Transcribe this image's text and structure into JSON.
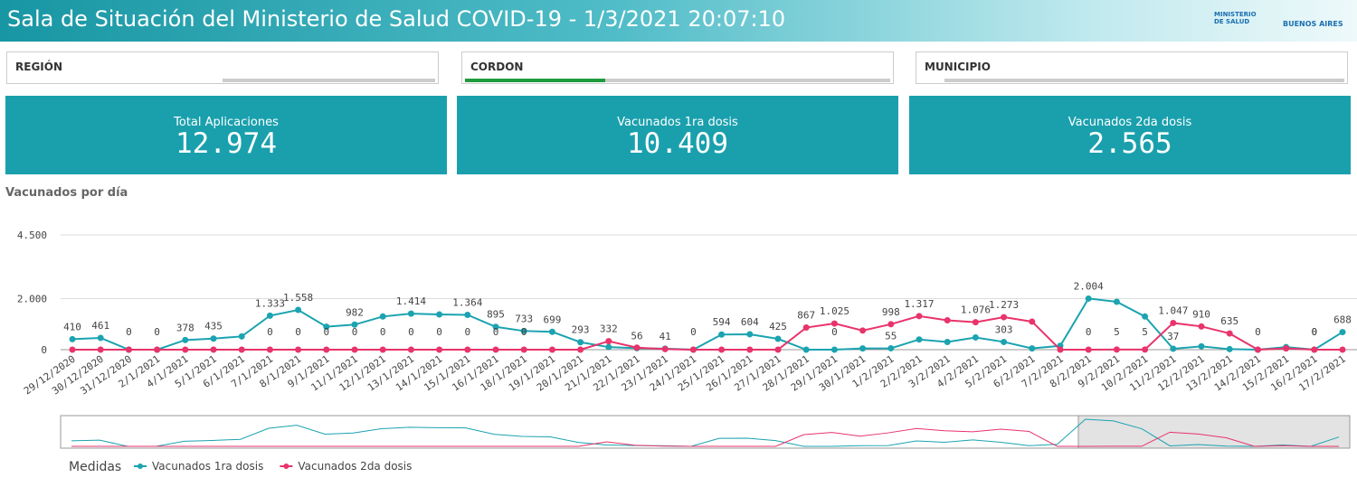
{
  "header": {
    "title": "Sala de Situación del Ministerio de Salud COVID-19 - 1/3/2021 20:07:10",
    "logo_left": "MINISTERIO DE SALUD",
    "logo_right": "BUENOS AIRES"
  },
  "filters": [
    "REGIÓN",
    "CORDON",
    "MUNICIPIO"
  ],
  "kpis": [
    {
      "title": "Total Aplicaciones",
      "value": "12.974"
    },
    {
      "title": "Vacunados 1ra dosis",
      "value": "10.409"
    },
    {
      "title": "Vacunados 2da dosis",
      "value": "2.565"
    }
  ],
  "chart_data": {
    "type": "line",
    "title": "Vacunados por día",
    "legend_title": "Medidas",
    "categories": [
      "29/12/2020",
      "30/12/2020",
      "31/12/2020",
      "2/1/2021",
      "4/1/2021",
      "5/1/2021",
      "6/1/2021",
      "7/1/2021",
      "8/1/2021",
      "9/1/2021",
      "11/1/2021",
      "12/1/2021",
      "13/1/2021",
      "14/1/2021",
      "15/1/2021",
      "16/1/2021",
      "18/1/2021",
      "19/1/2021",
      "20/1/2021",
      "21/1/2021",
      "22/1/2021",
      "23/1/2021",
      "24/1/2021",
      "25/1/2021",
      "26/1/2021",
      "27/1/2021",
      "28/1/2021",
      "29/1/2021",
      "30/1/2021",
      "1/2/2021",
      "2/2/2021",
      "3/2/2021",
      "4/2/2021",
      "5/2/2021",
      "6/2/2021",
      "7/2/2021",
      "8/2/2021",
      "9/2/2021",
      "10/2/2021",
      "11/2/2021",
      "12/2/2021",
      "13/2/2021",
      "14/2/2021",
      "15/2/2021",
      "16/2/2021",
      "17/2/2021"
    ],
    "ylim": [
      0,
      4500
    ],
    "yticks": [
      0,
      {
        "value": 2000,
        "label": "2.000"
      },
      {
        "value": 4500,
        "label": "4.500"
      }
    ],
    "grid": true,
    "series": [
      {
        "name": "Vacunados 1ra dosis",
        "color": "#1ba3b0",
        "values": [
          410,
          461,
          0,
          0,
          378,
          435,
          520,
          1333,
          1558,
          900,
          982,
          1300,
          1414,
          1380,
          1364,
          895,
          733,
          699,
          293,
          100,
          56,
          41,
          0,
          594,
          604,
          425,
          0,
          0,
          50,
          55,
          400,
          300,
          480,
          303,
          50,
          150,
          2004,
          1878,
          1300,
          37,
          130,
          20,
          0,
          100,
          0,
          688
        ],
        "value_labels": [
          "410",
          "461",
          "0",
          "0",
          "378",
          "435",
          null,
          "1.333",
          "1.558",
          null,
          "982",
          null,
          "1.414",
          null,
          "1.364",
          "895",
          "733",
          "699",
          "293",
          null,
          "56",
          "41",
          "0",
          "594",
          "604",
          "425",
          null,
          "0",
          null,
          "55",
          null,
          null,
          null,
          "303",
          null,
          null,
          "2.004",
          null,
          null,
          "37",
          null,
          null,
          null,
          null,
          "0",
          "688"
        ]
      },
      {
        "name": "Vacunados 2da dosis",
        "color": "#e8336b",
        "values": [
          0,
          0,
          0,
          0,
          0,
          0,
          0,
          0,
          0,
          0,
          0,
          0,
          0,
          0,
          0,
          0,
          0,
          0,
          0,
          332,
          80,
          20,
          0,
          0,
          0,
          0,
          867,
          1025,
          750,
          998,
          1317,
          1150,
          1076,
          1273,
          1100,
          0,
          0,
          5,
          5,
          1047,
          910,
          635,
          0,
          50,
          0,
          0
        ],
        "value_labels": [
          null,
          null,
          null,
          null,
          null,
          null,
          null,
          "0",
          "0",
          "0",
          "0",
          "0",
          "0",
          "0",
          "0",
          "0",
          "0",
          null,
          null,
          "332",
          null,
          null,
          null,
          null,
          null,
          null,
          "867",
          "1.025",
          null,
          "998",
          "1.317",
          null,
          "1.076",
          "1.273",
          null,
          null,
          "0",
          "5",
          "5",
          "1.047",
          "910",
          "635",
          "0",
          null,
          "0",
          null
        ]
      }
    ]
  }
}
